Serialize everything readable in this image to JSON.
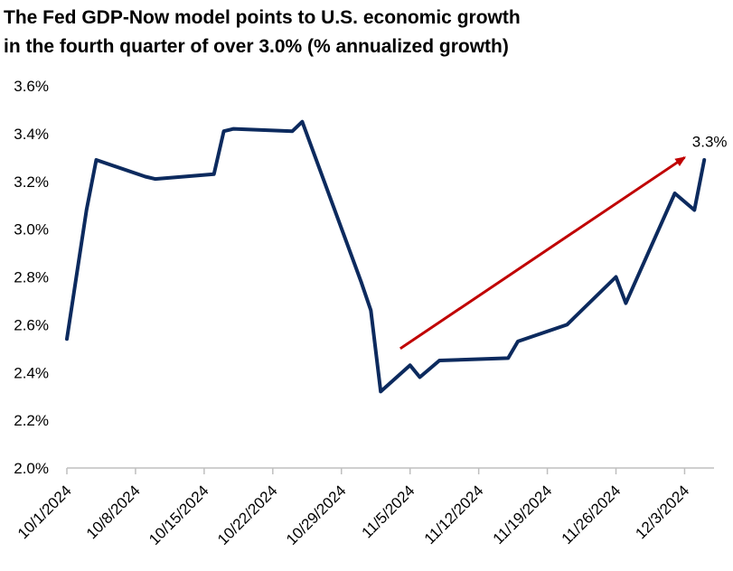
{
  "title_lines": [
    "The Fed GDP-Now model points to U.S. economic growth",
    "in the fourth quarter of over 3.0% (% annualized growth)"
  ],
  "chart_data": {
    "type": "line",
    "title": "The Fed GDP-Now model points to U.S. economic growth in the fourth quarter of over 3.0% (% annualized growth)",
    "xlabel": "",
    "ylabel": "",
    "ylim": [
      2.0,
      3.6
    ],
    "yticks": [
      2.0,
      2.2,
      2.4,
      2.6,
      2.8,
      3.0,
      3.2,
      3.4,
      3.6
    ],
    "ytick_labels": [
      "2.0%",
      "2.2%",
      "2.4%",
      "2.6%",
      "2.8%",
      "3.0%",
      "3.2%",
      "3.4%",
      "3.6%"
    ],
    "xlim": [
      "2024-10-01",
      "2024-12-06"
    ],
    "xticks": [
      "2024-10-01",
      "2024-10-08",
      "2024-10-15",
      "2024-10-22",
      "2024-10-29",
      "2024-11-05",
      "2024-11-12",
      "2024-11-19",
      "2024-11-26",
      "2024-12-03"
    ],
    "xtick_labels": [
      "10/1/2024",
      "10/8/2024",
      "10/15/2024",
      "10/22/2024",
      "10/29/2024",
      "11/5/2024",
      "11/12/2024",
      "11/19/2024",
      "11/26/2024",
      "12/3/2024"
    ],
    "grid": false,
    "line_color": "#0c2a5e",
    "series": [
      {
        "points": [
          {
            "x": "2024-10-01",
            "y": 2.54
          },
          {
            "x": "2024-10-03",
            "y": 3.08
          },
          {
            "x": "2024-10-04",
            "y": 3.29
          },
          {
            "x": "2024-10-09",
            "y": 3.22
          },
          {
            "x": "2024-10-10",
            "y": 3.21
          },
          {
            "x": "2024-10-16",
            "y": 3.23
          },
          {
            "x": "2024-10-17",
            "y": 3.41
          },
          {
            "x": "2024-10-18",
            "y": 3.42
          },
          {
            "x": "2024-10-24",
            "y": 3.41
          },
          {
            "x": "2024-10-25",
            "y": 3.45
          },
          {
            "x": "2024-10-31",
            "y": 2.78
          },
          {
            "x": "2024-11-01",
            "y": 2.66
          },
          {
            "x": "2024-11-02",
            "y": 2.32
          },
          {
            "x": "2024-11-05",
            "y": 2.43
          },
          {
            "x": "2024-11-06",
            "y": 2.38
          },
          {
            "x": "2024-11-08",
            "y": 2.45
          },
          {
            "x": "2024-11-15",
            "y": 2.46
          },
          {
            "x": "2024-11-16",
            "y": 2.53
          },
          {
            "x": "2024-11-21",
            "y": 2.6
          },
          {
            "x": "2024-11-26",
            "y": 2.8
          },
          {
            "x": "2024-11-27",
            "y": 2.69
          },
          {
            "x": "2024-12-02",
            "y": 3.15
          },
          {
            "x": "2024-12-04",
            "y": 3.08
          },
          {
            "x": "2024-12-05",
            "y": 3.29
          }
        ]
      }
    ],
    "annotations": [
      {
        "type": "arrow",
        "color": "#c00000",
        "from": {
          "x": "2024-11-04",
          "y": 2.5
        },
        "to": {
          "x": "2024-12-03",
          "y": 3.3
        }
      },
      {
        "type": "label",
        "text": "3.3%",
        "at": {
          "x": "2024-12-05",
          "y": 3.33
        }
      }
    ]
  }
}
